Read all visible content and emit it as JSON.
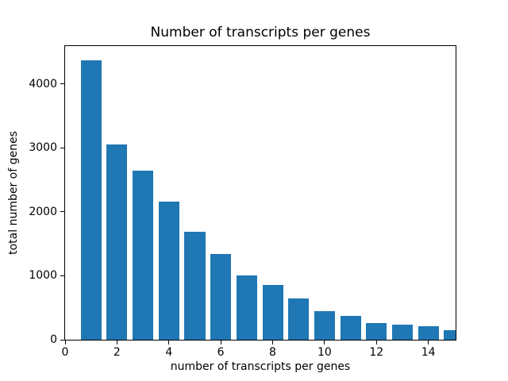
{
  "chart_data": {
    "type": "bar",
    "title": "Number of transcripts per genes",
    "xlabel": "number of transcripts per genes",
    "ylabel": "total number of genes",
    "categories": [
      1,
      2,
      3,
      4,
      5,
      6,
      7,
      8,
      9,
      10,
      11,
      12,
      13,
      14,
      15
    ],
    "values": [
      4365,
      3055,
      2645,
      2165,
      1690,
      1345,
      1010,
      860,
      640,
      445,
      370,
      260,
      240,
      215,
      150
    ],
    "bar_color": "#1f77b4",
    "bar_width": 0.8,
    "xlim": [
      0,
      15.05
    ],
    "ylim": [
      0,
      4590
    ],
    "xticks": [
      0,
      2,
      4,
      6,
      8,
      10,
      12,
      14
    ],
    "yticks": [
      0,
      1000,
      2000,
      3000,
      4000
    ],
    "grid": false,
    "legend": "none",
    "spine_color": "#000000",
    "background": "#ffffff"
  }
}
